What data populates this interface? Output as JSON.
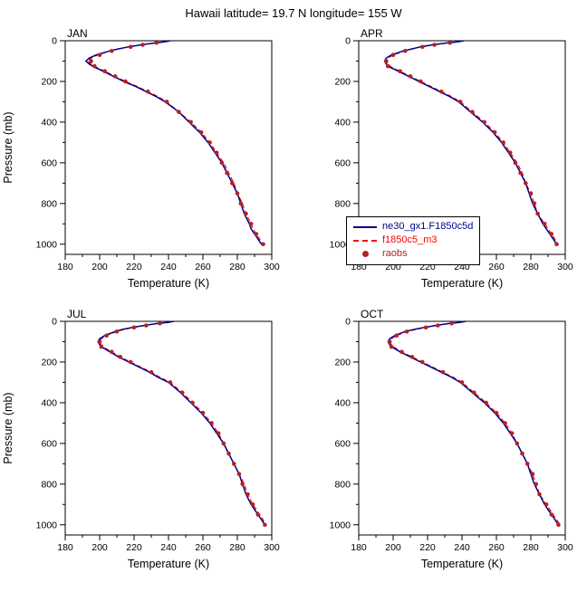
{
  "title": "Hawaii  latitude= 19.7 N longitude= 155 W",
  "legend": {
    "items": [
      {
        "label": "ne30_gx1.F1850c5d",
        "color": "#00008B",
        "style": "solid"
      },
      {
        "label": "f1850c5_m3",
        "color": "#FF0000",
        "style": "dashed"
      },
      {
        "label": "raobs",
        "color": "#B22222",
        "style": "dot"
      }
    ]
  },
  "chart_data": [
    {
      "type": "line",
      "title": "JAN",
      "xlabel": "Temperature (K)",
      "ylabel": "Pressure (mb)",
      "show_ylabel": true,
      "xlim": [
        180,
        300
      ],
      "ylim": [
        0,
        1050
      ],
      "xticks": [
        180,
        200,
        220,
        240,
        260,
        280,
        300
      ],
      "yticks": [
        0,
        200,
        400,
        600,
        800,
        1000
      ],
      "x_minor_step": 10,
      "y_minor_step": 100,
      "series": [
        {
          "name": "f1850c5_m3",
          "color": "#FF0000",
          "style": "dashed",
          "pressure": [
            0,
            5,
            10,
            20,
            30,
            40,
            50,
            70,
            85,
            100,
            115,
            130,
            150,
            175,
            200,
            225,
            250,
            275,
            300,
            350,
            400,
            450,
            500,
            550,
            600,
            650,
            700,
            750,
            800,
            850,
            900,
            925,
            950,
            975,
            1000
          ],
          "temperature": [
            241,
            238,
            233,
            224,
            217,
            211,
            206,
            199,
            195,
            193,
            195,
            198,
            203,
            209,
            215,
            222,
            228,
            234,
            239,
            246,
            253,
            259,
            264,
            268,
            272,
            275,
            278,
            280,
            283,
            285,
            288,
            289,
            291,
            293,
            294
          ]
        },
        {
          "name": "ne30_gx1.F1850c5d",
          "color": "#00008B",
          "style": "solid",
          "pressure": [
            0,
            5,
            10,
            20,
            30,
            40,
            50,
            70,
            85,
            100,
            115,
            130,
            150,
            175,
            200,
            225,
            250,
            275,
            300,
            350,
            400,
            450,
            500,
            550,
            600,
            650,
            700,
            750,
            800,
            850,
            900,
            925,
            950,
            975,
            1000
          ],
          "temperature": [
            241,
            238,
            233,
            224,
            217,
            211,
            206,
            198,
            194,
            192,
            194,
            197,
            202,
            208,
            214,
            221,
            227,
            233,
            238,
            246,
            252,
            258,
            263,
            267,
            271,
            274,
            277,
            280,
            282,
            284,
            287,
            288,
            290,
            292,
            294
          ]
        },
        {
          "name": "raobs",
          "color": "#B22222",
          "style": "scatter",
          "pressure": [
            10,
            20,
            30,
            50,
            70,
            100,
            125,
            150,
            175,
            200,
            250,
            300,
            350,
            400,
            450,
            500,
            550,
            600,
            650,
            700,
            750,
            800,
            850,
            900,
            950,
            1000
          ],
          "temperature": [
            233,
            225,
            218,
            207,
            200,
            195,
            197,
            203,
            209,
            215,
            228,
            239,
            246,
            253,
            259,
            264,
            268,
            271,
            274,
            277,
            280,
            282,
            285,
            288,
            291,
            295
          ]
        }
      ]
    },
    {
      "type": "line",
      "title": "APR",
      "xlabel": "Temperature (K)",
      "ylabel": "Pressure (mb)",
      "show_ylabel": false,
      "xlim": [
        180,
        300
      ],
      "ylim": [
        0,
        1050
      ],
      "xticks": [
        180,
        200,
        220,
        240,
        260,
        280,
        300
      ],
      "yticks": [
        0,
        200,
        400,
        600,
        800,
        1000
      ],
      "x_minor_step": 10,
      "y_minor_step": 100,
      "series": [
        {
          "name": "f1850c5_m3",
          "color": "#FF0000",
          "style": "dashed",
          "pressure": [
            0,
            5,
            10,
            20,
            30,
            40,
            50,
            70,
            85,
            100,
            115,
            130,
            150,
            175,
            200,
            225,
            250,
            275,
            300,
            350,
            400,
            450,
            500,
            550,
            600,
            650,
            700,
            750,
            800,
            850,
            900,
            925,
            950,
            975,
            1000
          ],
          "temperature": [
            241,
            238,
            232,
            223,
            216,
            211,
            207,
            200,
            197,
            196,
            197,
            199,
            204,
            210,
            216,
            222,
            228,
            234,
            239,
            246,
            253,
            259,
            264,
            268,
            272,
            275,
            277,
            280,
            282,
            284,
            288,
            290,
            292,
            294,
            295
          ]
        },
        {
          "name": "ne30_gx1.F1850c5d",
          "color": "#00008B",
          "style": "solid",
          "pressure": [
            0,
            5,
            10,
            20,
            30,
            40,
            50,
            70,
            85,
            100,
            115,
            130,
            150,
            175,
            200,
            225,
            250,
            275,
            300,
            350,
            400,
            450,
            500,
            550,
            600,
            650,
            700,
            750,
            800,
            850,
            900,
            925,
            950,
            975,
            1000
          ],
          "temperature": [
            241,
            238,
            232,
            223,
            216,
            211,
            206,
            199,
            196,
            195,
            196,
            198,
            203,
            209,
            215,
            221,
            227,
            233,
            238,
            245,
            252,
            258,
            263,
            267,
            271,
            274,
            277,
            279,
            281,
            284,
            287,
            289,
            291,
            293,
            295
          ]
        },
        {
          "name": "raobs",
          "color": "#B22222",
          "style": "scatter",
          "pressure": [
            10,
            20,
            30,
            50,
            70,
            100,
            125,
            150,
            175,
            200,
            250,
            300,
            350,
            400,
            450,
            500,
            550,
            600,
            650,
            700,
            750,
            800,
            850,
            900,
            950,
            1000
          ],
          "temperature": [
            233,
            224,
            217,
            207,
            200,
            196,
            197,
            204,
            210,
            216,
            228,
            239,
            246,
            253,
            259,
            264,
            268,
            271,
            274,
            277,
            280,
            282,
            284,
            288,
            292,
            295
          ]
        }
      ]
    },
    {
      "type": "line",
      "title": "JUL",
      "xlabel": "Temperature (K)",
      "ylabel": "Pressure (mb)",
      "show_ylabel": true,
      "xlim": [
        180,
        300
      ],
      "ylim": [
        0,
        1050
      ],
      "xticks": [
        180,
        200,
        220,
        240,
        260,
        280,
        300
      ],
      "yticks": [
        0,
        200,
        400,
        600,
        800,
        1000
      ],
      "x_minor_step": 10,
      "y_minor_step": 100,
      "series": [
        {
          "name": "f1850c5_m3",
          "color": "#FF0000",
          "style": "dashed",
          "pressure": [
            0,
            5,
            10,
            20,
            30,
            40,
            50,
            70,
            85,
            100,
            115,
            130,
            150,
            175,
            200,
            225,
            250,
            275,
            300,
            350,
            400,
            450,
            500,
            550,
            600,
            650,
            700,
            750,
            800,
            850,
            900,
            925,
            950,
            975,
            1000
          ],
          "temperature": [
            243,
            240,
            234,
            226,
            220,
            214,
            210,
            204,
            201,
            200,
            201,
            203,
            207,
            212,
            218,
            224,
            230,
            235,
            241,
            248,
            254,
            260,
            265,
            269,
            272,
            275,
            278,
            281,
            284,
            286,
            289,
            291,
            293,
            295,
            296
          ]
        },
        {
          "name": "ne30_gx1.F1850c5d",
          "color": "#00008B",
          "style": "solid",
          "pressure": [
            0,
            5,
            10,
            20,
            30,
            40,
            50,
            70,
            85,
            100,
            115,
            130,
            150,
            175,
            200,
            225,
            250,
            275,
            300,
            350,
            400,
            450,
            500,
            550,
            600,
            650,
            700,
            750,
            800,
            850,
            900,
            925,
            950,
            975,
            1000
          ],
          "temperature": [
            243,
            240,
            234,
            226,
            219,
            213,
            209,
            203,
            200,
            199,
            200,
            202,
            206,
            211,
            217,
            223,
            229,
            234,
            240,
            247,
            253,
            259,
            264,
            268,
            272,
            275,
            278,
            281,
            283,
            285,
            288,
            290,
            292,
            294,
            296
          ]
        },
        {
          "name": "raobs",
          "color": "#B22222",
          "style": "scatter",
          "pressure": [
            10,
            20,
            30,
            50,
            70,
            100,
            125,
            150,
            175,
            200,
            250,
            300,
            350,
            400,
            450,
            500,
            550,
            600,
            650,
            700,
            750,
            800,
            850,
            900,
            950,
            1000
          ],
          "temperature": [
            235,
            227,
            220,
            210,
            204,
            200,
            201,
            207,
            212,
            218,
            230,
            241,
            248,
            254,
            260,
            265,
            269,
            272,
            275,
            278,
            281,
            283,
            286,
            289,
            292,
            296
          ]
        }
      ]
    },
    {
      "type": "line",
      "title": "OCT",
      "xlabel": "Temperature (K)",
      "ylabel": "Pressure (mb)",
      "show_ylabel": false,
      "xlim": [
        180,
        300
      ],
      "ylim": [
        0,
        1050
      ],
      "xticks": [
        180,
        200,
        220,
        240,
        260,
        280,
        300
      ],
      "yticks": [
        0,
        200,
        400,
        600,
        800,
        1000
      ],
      "x_minor_step": 10,
      "y_minor_step": 100,
      "series": [
        {
          "name": "f1850c5_m3",
          "color": "#FF0000",
          "style": "dashed",
          "pressure": [
            0,
            5,
            10,
            20,
            30,
            40,
            50,
            70,
            85,
            100,
            115,
            130,
            150,
            175,
            200,
            225,
            250,
            275,
            300,
            350,
            400,
            450,
            500,
            550,
            600,
            650,
            700,
            750,
            800,
            850,
            900,
            925,
            950,
            975,
            1000
          ],
          "temperature": [
            242,
            239,
            233,
            225,
            219,
            213,
            208,
            202,
            199,
            198,
            199,
            201,
            205,
            211,
            217,
            223,
            229,
            235,
            240,
            247,
            254,
            260,
            265,
            269,
            272,
            275,
            278,
            281,
            283,
            285,
            289,
            291,
            293,
            295,
            297
          ]
        },
        {
          "name": "ne30_gx1.F1850c5d",
          "color": "#00008B",
          "style": "solid",
          "pressure": [
            0,
            5,
            10,
            20,
            30,
            40,
            50,
            70,
            85,
            100,
            115,
            130,
            150,
            175,
            200,
            225,
            250,
            275,
            300,
            350,
            400,
            450,
            500,
            550,
            600,
            650,
            700,
            750,
            800,
            850,
            900,
            925,
            950,
            975,
            1000
          ],
          "temperature": [
            242,
            239,
            233,
            225,
            218,
            212,
            207,
            201,
            198,
            197,
            198,
            200,
            204,
            210,
            216,
            222,
            228,
            234,
            239,
            246,
            253,
            259,
            264,
            268,
            272,
            275,
            278,
            280,
            282,
            285,
            288,
            290,
            292,
            294,
            296
          ]
        },
        {
          "name": "raobs",
          "color": "#B22222",
          "style": "scatter",
          "pressure": [
            10,
            20,
            30,
            50,
            70,
            100,
            125,
            150,
            175,
            200,
            250,
            300,
            350,
            400,
            450,
            500,
            550,
            600,
            650,
            700,
            750,
            800,
            850,
            900,
            950,
            1000
          ],
          "temperature": [
            234,
            226,
            219,
            208,
            202,
            198,
            199,
            205,
            211,
            217,
            229,
            240,
            247,
            254,
            260,
            265,
            269,
            272,
            275,
            278,
            281,
            283,
            285,
            289,
            292,
            296
          ]
        }
      ]
    }
  ]
}
